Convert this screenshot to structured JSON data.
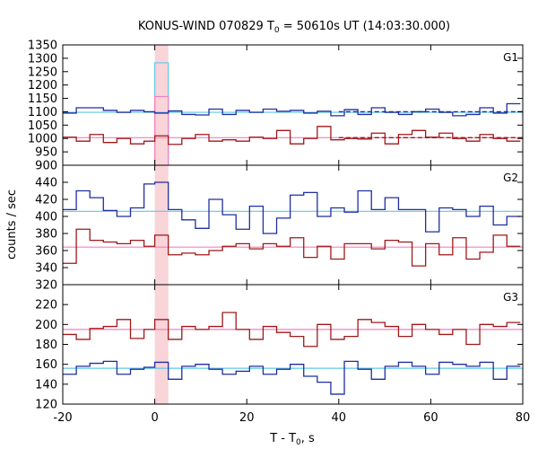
{
  "chart_data": {
    "type": "line",
    "title_main": "KONUS-WIND 070829 T",
    "title_sub": "0",
    "title_rest": " = 50610s UT (14:03:30.000)",
    "xlabel_main": "T - T",
    "xlabel_sub": "0",
    "xlabel_rest": ", s",
    "ylabel": "counts / sec",
    "xlim": [
      -20,
      80
    ],
    "xticks": [
      -20,
      0,
      20,
      40,
      60,
      80
    ],
    "highlight_interval": [
      0,
      2.944
    ],
    "bin_edges": [
      -20,
      -17.056,
      -14.112,
      -11.168,
      -8.224,
      -5.28,
      -2.336,
      0,
      2.944,
      5.888,
      8.832,
      11.776,
      14.72,
      17.664,
      20.608,
      23.552,
      26.496,
      29.44,
      32.384,
      35.328,
      38.272,
      41.216,
      44.16,
      47.104,
      50.048,
      52.992,
      55.936,
      58.88,
      61.824,
      64.768,
      67.712,
      70.656,
      73.6,
      76.544,
      79.488
    ],
    "colors": {
      "blue": "#1f2fa0",
      "red": "#a01818",
      "cyan": "#5fc8e6",
      "pink": "#f080c0",
      "highlight": "#f7c5cc"
    },
    "panels": [
      {
        "label": "G1",
        "ylim": [
          900,
          1350
        ],
        "yticks": [
          900,
          950,
          1000,
          1050,
          1100,
          1150,
          1200,
          1250,
          1300,
          1350
        ],
        "series": [
          {
            "color": "blue",
            "values": [
              1095,
              1115,
              1115,
              1105,
              1098,
              1105,
              1100,
              1095,
              1103,
              1090,
              1088,
              1110,
              1090,
              1105,
              1098,
              1110,
              1102,
              1105,
              1095,
              1102,
              1085,
              1108,
              1090,
              1115,
              1098,
              1090,
              1100,
              1110,
              1098,
              1085,
              1090,
              1115,
              1095,
              1130
            ],
            "fit": 1098,
            "fit_color": "cyan",
            "dashed": 1100
          },
          {
            "color": "red",
            "values": [
              1005,
              990,
              1015,
              985,
              1000,
              980,
              990,
              1010,
              978,
              1000,
              1015,
              990,
              995,
              990,
              1005,
              1000,
              1030,
              980,
              1000,
              1045,
              995,
              1000,
              998,
              1020,
              980,
              1015,
              1030,
              1005,
              1020,
              1000,
              990,
              1015,
              1000,
              990
            ],
            "fit": 1003,
            "fit_color": "pink",
            "dashed": 1003
          }
        ],
        "highlight_bars": [
          {
            "color": "cyan",
            "value": 1283
          },
          {
            "color": "pink",
            "value": 1157
          }
        ]
      },
      {
        "label": "G2",
        "ylim": [
          320,
          460
        ],
        "yticks": [
          320,
          340,
          360,
          380,
          400,
          420,
          440
        ],
        "series": [
          {
            "color": "blue",
            "values": [
              408,
              430,
              422,
              407,
              400,
              410,
              438,
              440,
              408,
              396,
              386,
              420,
              402,
              385,
              412,
              380,
              398,
              425,
              428,
              400,
              410,
              405,
              430,
              408,
              422,
              408,
              408,
              382,
              410,
              408,
              400,
              412,
              390,
              400
            ],
            "fit": 406,
            "fit_color": "cyan"
          },
          {
            "color": "red",
            "values": [
              345,
              385,
              372,
              370,
              368,
              372,
              365,
              378,
              355,
              357,
              355,
              360,
              365,
              368,
              362,
              368,
              365,
              375,
              352,
              365,
              350,
              368,
              368,
              362,
              372,
              370,
              342,
              368,
              355,
              375,
              350,
              358,
              378,
              365
            ],
            "fit": 364,
            "fit_color": "pink"
          }
        ]
      },
      {
        "label": "G3",
        "ylim": [
          120,
          240
        ],
        "yticks": [
          120,
          140,
          160,
          180,
          200,
          220
        ],
        "series": [
          {
            "color": "red",
            "values": [
              190,
              185,
              196,
              198,
              205,
              186,
              195,
              205,
              185,
              198,
              195,
              198,
              212,
              195,
              185,
              198,
              192,
              188,
              178,
              200,
              185,
              188,
              205,
              202,
              198,
              188,
              200,
              195,
              190,
              195,
              180,
              200,
              198,
              202
            ],
            "fit": 195,
            "fit_color": "pink"
          },
          {
            "color": "blue",
            "values": [
              150,
              158,
              161,
              163,
              150,
              155,
              157,
              162,
              145,
              158,
              160,
              155,
              150,
              153,
              158,
              150,
              155,
              160,
              148,
              142,
              130,
              163,
              155,
              145,
              158,
              162,
              158,
              150,
              162,
              160,
              158,
              162,
              145,
              158
            ],
            "fit": 156,
            "fit_color": "cyan"
          }
        ]
      }
    ]
  }
}
